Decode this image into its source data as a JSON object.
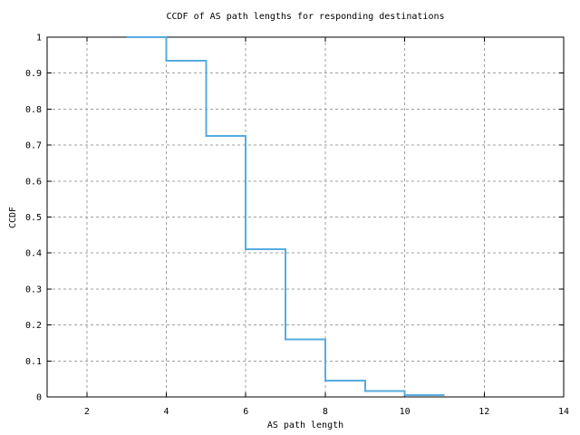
{
  "figure": {
    "title": "CCDF of AS path lengths for responding destinations",
    "xlabel": "AS path length",
    "ylabel": "CCDF"
  },
  "colors": {
    "line": "#56ace0",
    "grid": "#a0a0a0",
    "axis": "#000000",
    "background": "#ffffff",
    "text": "#000000"
  },
  "chart_data": {
    "type": "line",
    "subtype": "step-post",
    "title": "CCDF of AS path lengths for responding destinations",
    "xlabel": "AS path length",
    "ylabel": "CCDF",
    "xlim": [
      1,
      14
    ],
    "ylim": [
      0,
      1
    ],
    "grid": true,
    "legend": false,
    "xticks": [
      {
        "v": 2,
        "label": "2"
      },
      {
        "v": 4,
        "label": "4"
      },
      {
        "v": 6,
        "label": "6"
      },
      {
        "v": 8,
        "label": "8"
      },
      {
        "v": 10,
        "label": "10"
      },
      {
        "v": 12,
        "label": "12"
      },
      {
        "v": 14,
        "label": "14"
      }
    ],
    "yticks": [
      {
        "v": 0,
        "label": "0"
      },
      {
        "v": 0.1,
        "label": "0.1"
      },
      {
        "v": 0.2,
        "label": "0.2"
      },
      {
        "v": 0.3,
        "label": "0.3"
      },
      {
        "v": 0.4,
        "label": "0.4"
      },
      {
        "v": 0.5,
        "label": "0.5"
      },
      {
        "v": 0.6,
        "label": "0.6"
      },
      {
        "v": 0.7,
        "label": "0.7"
      },
      {
        "v": 0.8,
        "label": "0.8"
      },
      {
        "v": 0.9,
        "label": "0.9"
      },
      {
        "v": 1,
        "label": "1"
      }
    ],
    "series": [
      {
        "name": "ccdf-step-line",
        "color": "#56ace0",
        "points": [
          {
            "x": 3,
            "y": 1.0
          },
          {
            "x": 4,
            "y": 0.935
          },
          {
            "x": 5,
            "y": 0.725
          },
          {
            "x": 6,
            "y": 0.41
          },
          {
            "x": 7,
            "y": 0.16
          },
          {
            "x": 8,
            "y": 0.045
          },
          {
            "x": 9,
            "y": 0.016
          },
          {
            "x": 10,
            "y": 0.005
          }
        ],
        "x_end": 11
      }
    ]
  }
}
